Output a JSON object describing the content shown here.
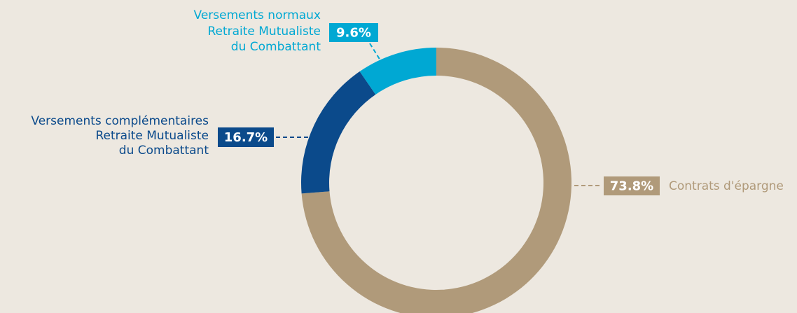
{
  "chart_data": {
    "type": "donut",
    "categories": [
      [
        "Contrats d'épargne"
      ],
      [
        "Versements complémentaires",
        "Retraite Mutualiste",
        "du Combattant"
      ],
      [
        "Versements normaux",
        "Retraite Mutualiste",
        "du Combattant"
      ]
    ],
    "values": [
      73.8,
      16.7,
      9.6
    ],
    "value_labels": [
      "73.8%",
      "16.7%",
      "9.6%"
    ],
    "colors": [
      "#b09a7a",
      "#0b4a8b",
      "#00a8d3"
    ]
  }
}
